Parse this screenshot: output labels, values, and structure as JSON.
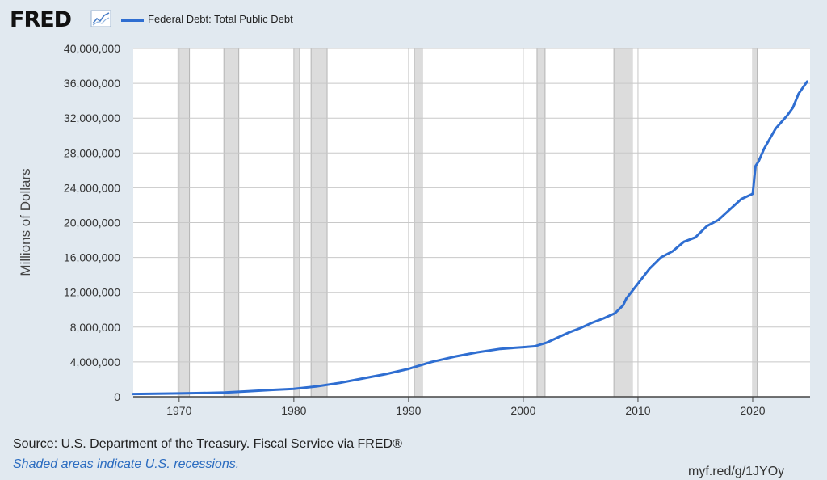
{
  "brand": {
    "logo_text": "FRED"
  },
  "colors": {
    "line": "#2f6ed1",
    "recession_fill": "#dcdcdc",
    "recession_edge": "#b4b4b4",
    "plot_bg": "#ffffff",
    "grid": "#c8c8c8"
  },
  "footer": {
    "source": "Source: U.S. Department of the Treasury. Fiscal Service via FRED®",
    "recession_note": "Shaded areas indicate U.S. recessions.",
    "shortlink": "myf.red/g/1JYOy"
  },
  "chart_data": {
    "type": "line",
    "title": "",
    "xlabel": "",
    "ylabel": "Millions of Dollars",
    "xlim": [
      1966,
      2025
    ],
    "ylim": [
      0,
      40000000
    ],
    "y_ticks": [
      0,
      4000000,
      8000000,
      12000000,
      16000000,
      20000000,
      24000000,
      28000000,
      32000000,
      36000000,
      40000000
    ],
    "y_tick_labels": [
      "0",
      "4,000,000",
      "8,000,000",
      "12,000,000",
      "16,000,000",
      "20,000,000",
      "24,000,000",
      "28,000,000",
      "32,000,000",
      "36,000,000",
      "40,000,000"
    ],
    "x_ticks": [
      1970,
      1980,
      1990,
      2000,
      2010,
      2020
    ],
    "x_tick_labels": [
      "1970",
      "1980",
      "1990",
      "2000",
      "2010",
      "2020"
    ],
    "grid": true,
    "legend": "top-left",
    "recessions": [
      [
        1969.9,
        1970.9
      ],
      [
        1973.9,
        1975.2
      ],
      [
        1980.0,
        1980.5
      ],
      [
        1981.5,
        1982.9
      ],
      [
        1990.5,
        1991.2
      ],
      [
        2001.2,
        2001.9
      ],
      [
        2007.9,
        2009.5
      ],
      [
        2020.1,
        2020.4
      ]
    ],
    "series": [
      {
        "name": "Federal Debt: Total Public Debt",
        "x": [
          1966,
          1968,
          1970,
          1972,
          1974,
          1976,
          1978,
          1980,
          1982,
          1984,
          1986,
          1988,
          1990,
          1992,
          1994,
          1996,
          1998,
          2000,
          2001,
          2002,
          2003,
          2004,
          2005,
          2006,
          2007,
          2008,
          2008.7,
          2009,
          2010,
          2011,
          2012,
          2013,
          2014,
          2015,
          2016,
          2017,
          2018,
          2019,
          2020.0,
          2020.25,
          2020.5,
          2021,
          2022,
          2023,
          2023.5,
          2024,
          2024.75
        ],
        "values": [
          320000,
          350000,
          380000,
          430000,
          480000,
          620000,
          780000,
          900000,
          1200000,
          1600000,
          2100000,
          2600000,
          3200000,
          4000000,
          4600000,
          5100000,
          5500000,
          5700000,
          5800000,
          6200000,
          6800000,
          7400000,
          7900000,
          8500000,
          9000000,
          9600000,
          10500000,
          11300000,
          13000000,
          14700000,
          16000000,
          16700000,
          17800000,
          18300000,
          19600000,
          20300000,
          21500000,
          22700000,
          23300000,
          26500000,
          27000000,
          28500000,
          30800000,
          32300000,
          33200000,
          34800000,
          36200000
        ]
      }
    ]
  }
}
